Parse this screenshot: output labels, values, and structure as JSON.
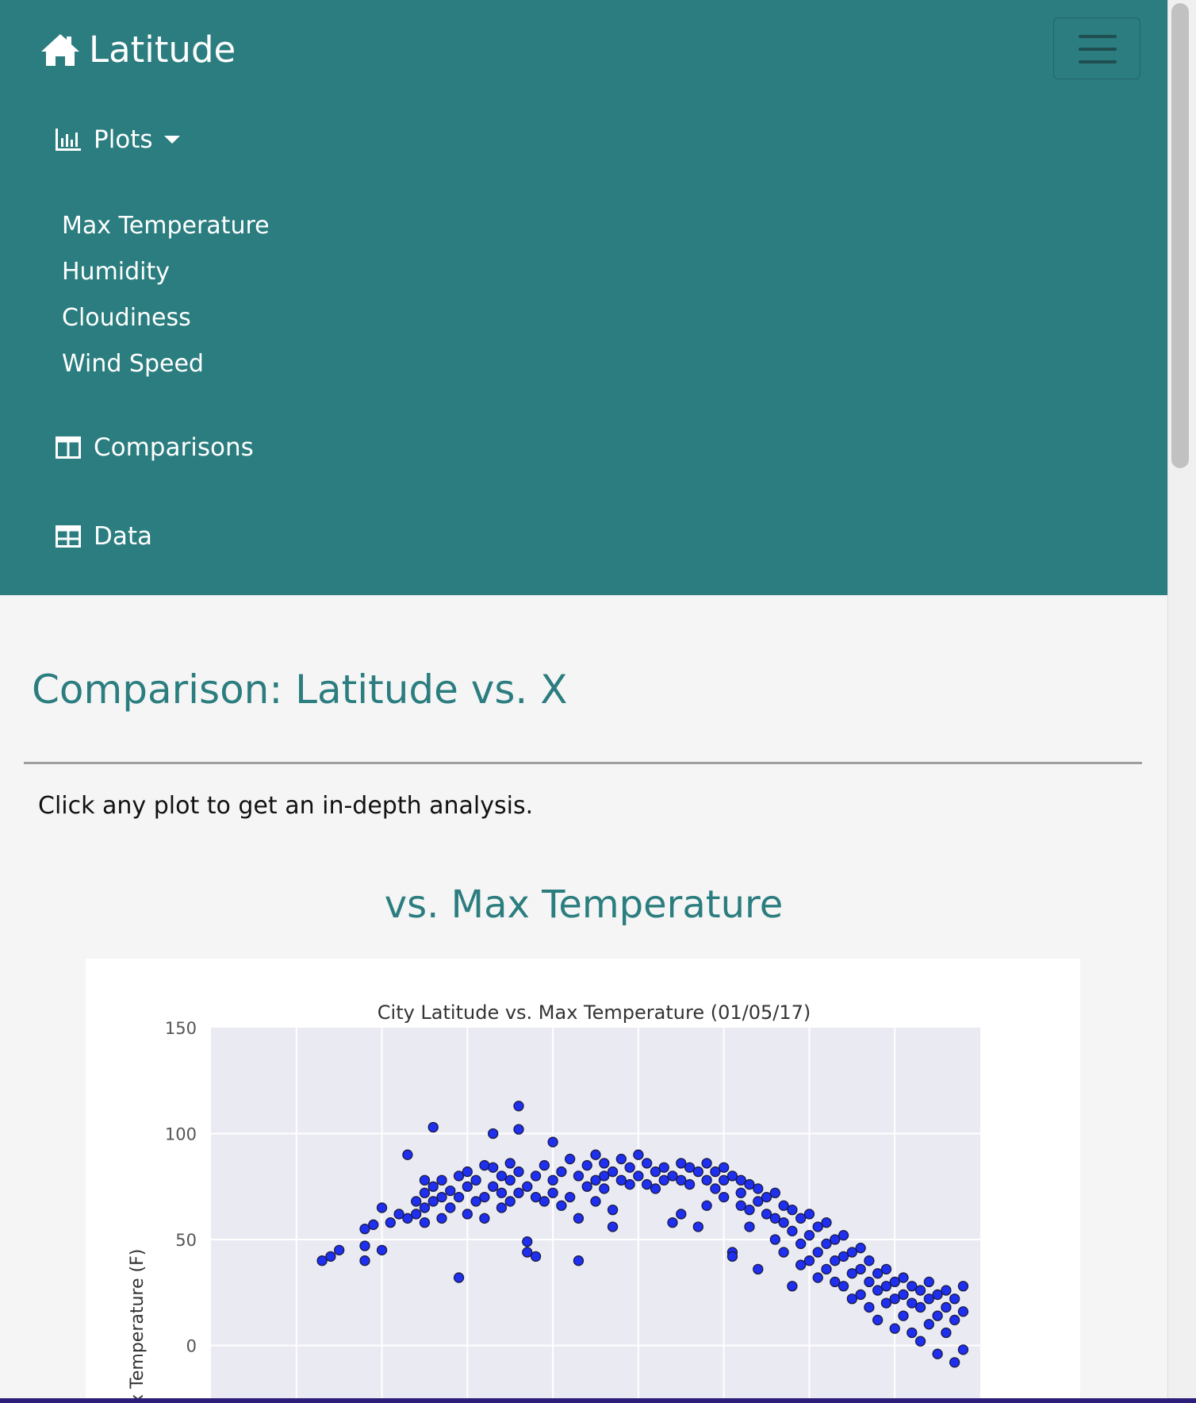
{
  "navbar": {
    "brand": "Latitude",
    "brand_icon": "home-icon",
    "toggler_icon": "hamburger-icon",
    "background": "#2b7d7f",
    "plots_label": "Plots",
    "plots_icon": "bar-chart-icon",
    "dropdown_items": [
      "Max Temperature",
      "Humidity",
      "Cloudiness",
      "Wind Speed"
    ],
    "comparisons_label": "Comparisons",
    "comparisons_icon": "columns-icon",
    "data_label": "Data",
    "data_icon": "table-icon"
  },
  "main": {
    "heading": "Comparison: Latitude vs. X",
    "lead": "Click any plot to get an in-depth analysis.",
    "plot_heading": "vs. Max Temperature"
  },
  "chart_data": {
    "type": "scatter",
    "title": "City Latitude vs. Max Temperature (01/05/17)",
    "ylabel": "Max Temperature (F)",
    "xlabel": "",
    "ylim": [
      -25,
      150
    ],
    "xlim": [
      -60,
      30
    ],
    "yticks": [
      0,
      50,
      100,
      150
    ],
    "grid": true,
    "point_color": "#1e2ff0",
    "points": [
      [
        -47,
        40
      ],
      [
        -46,
        42
      ],
      [
        -45,
        45
      ],
      [
        -42,
        55
      ],
      [
        -42,
        47
      ],
      [
        -42,
        40
      ],
      [
        -41,
        57
      ],
      [
        -40,
        65
      ],
      [
        -40,
        45
      ],
      [
        -39,
        58
      ],
      [
        -38,
        62
      ],
      [
        -37,
        60
      ],
      [
        -37,
        90
      ],
      [
        -36,
        68
      ],
      [
        -36,
        62
      ],
      [
        -35,
        78
      ],
      [
        -35,
        72
      ],
      [
        -35,
        65
      ],
      [
        -35,
        58
      ],
      [
        -34,
        103
      ],
      [
        -34,
        75
      ],
      [
        -34,
        68
      ],
      [
        -33,
        70
      ],
      [
        -33,
        60
      ],
      [
        -33,
        78
      ],
      [
        -32,
        73
      ],
      [
        -32,
        65
      ],
      [
        -31,
        80
      ],
      [
        -31,
        32
      ],
      [
        -31,
        70
      ],
      [
        -30,
        82
      ],
      [
        -30,
        62
      ],
      [
        -30,
        75
      ],
      [
        -29,
        68
      ],
      [
        -29,
        78
      ],
      [
        -28,
        85
      ],
      [
        -28,
        70
      ],
      [
        -28,
        60
      ],
      [
        -27,
        100
      ],
      [
        -27,
        84
      ],
      [
        -27,
        75
      ],
      [
        -26,
        80
      ],
      [
        -26,
        65
      ],
      [
        -26,
        72
      ],
      [
        -25,
        86
      ],
      [
        -25,
        78
      ],
      [
        -25,
        68
      ],
      [
        -24,
        113
      ],
      [
        -24,
        102
      ],
      [
        -24,
        82
      ],
      [
        -24,
        72
      ],
      [
        -23,
        75
      ],
      [
        -23,
        49
      ],
      [
        -23,
        44
      ],
      [
        -22,
        80
      ],
      [
        -22,
        70
      ],
      [
        -22,
        42
      ],
      [
        -21,
        85
      ],
      [
        -21,
        68
      ],
      [
        -20,
        96
      ],
      [
        -20,
        78
      ],
      [
        -20,
        72
      ],
      [
        -19,
        82
      ],
      [
        -19,
        66
      ],
      [
        -18,
        88
      ],
      [
        -18,
        70
      ],
      [
        -17,
        80
      ],
      [
        -17,
        60
      ],
      [
        -17,
        40
      ],
      [
        -16,
        85
      ],
      [
        -16,
        75
      ],
      [
        -15,
        90
      ],
      [
        -15,
        78
      ],
      [
        -15,
        68
      ],
      [
        -14,
        86
      ],
      [
        -14,
        80
      ],
      [
        -14,
        74
      ],
      [
        -13,
        82
      ],
      [
        -13,
        64
      ],
      [
        -13,
        56
      ],
      [
        -12,
        88
      ],
      [
        -12,
        78
      ],
      [
        -11,
        84
      ],
      [
        -11,
        76
      ],
      [
        -10,
        90
      ],
      [
        -10,
        80
      ],
      [
        -9,
        86
      ],
      [
        -9,
        76
      ],
      [
        -8,
        82
      ],
      [
        -8,
        74
      ],
      [
        -7,
        84
      ],
      [
        -7,
        78
      ],
      [
        -6,
        80
      ],
      [
        -6,
        58
      ],
      [
        -5,
        86
      ],
      [
        -5,
        78
      ],
      [
        -5,
        62
      ],
      [
        -4,
        84
      ],
      [
        -4,
        76
      ],
      [
        -3,
        82
      ],
      [
        -3,
        56
      ],
      [
        -2,
        86
      ],
      [
        -2,
        78
      ],
      [
        -2,
        66
      ],
      [
        -1,
        82
      ],
      [
        -1,
        74
      ],
      [
        0,
        84
      ],
      [
        0,
        78
      ],
      [
        0,
        70
      ],
      [
        1,
        80
      ],
      [
        1,
        44
      ],
      [
        1,
        42
      ],
      [
        2,
        78
      ],
      [
        2,
        72
      ],
      [
        2,
        66
      ],
      [
        3,
        76
      ],
      [
        3,
        64
      ],
      [
        3,
        56
      ],
      [
        4,
        74
      ],
      [
        4,
        68
      ],
      [
        4,
        36
      ],
      [
        5,
        70
      ],
      [
        5,
        62
      ],
      [
        6,
        72
      ],
      [
        6,
        60
      ],
      [
        6,
        50
      ],
      [
        7,
        66
      ],
      [
        7,
        58
      ],
      [
        7,
        44
      ],
      [
        8,
        64
      ],
      [
        8,
        54
      ],
      [
        8,
        28
      ],
      [
        9,
        60
      ],
      [
        9,
        48
      ],
      [
        9,
        38
      ],
      [
        10,
        62
      ],
      [
        10,
        52
      ],
      [
        10,
        40
      ],
      [
        11,
        56
      ],
      [
        11,
        44
      ],
      [
        11,
        32
      ],
      [
        12,
        58
      ],
      [
        12,
        48
      ],
      [
        12,
        36
      ],
      [
        13,
        50
      ],
      [
        13,
        40
      ],
      [
        13,
        30
      ],
      [
        14,
        52
      ],
      [
        14,
        42
      ],
      [
        14,
        28
      ],
      [
        15,
        44
      ],
      [
        15,
        34
      ],
      [
        15,
        22
      ],
      [
        16,
        46
      ],
      [
        16,
        36
      ],
      [
        16,
        24
      ],
      [
        17,
        40
      ],
      [
        17,
        30
      ],
      [
        17,
        18
      ],
      [
        18,
        34
      ],
      [
        18,
        26
      ],
      [
        18,
        12
      ],
      [
        19,
        36
      ],
      [
        19,
        28
      ],
      [
        19,
        20
      ],
      [
        20,
        30
      ],
      [
        20,
        22
      ],
      [
        20,
        8
      ],
      [
        21,
        32
      ],
      [
        21,
        24
      ],
      [
        21,
        14
      ],
      [
        22,
        28
      ],
      [
        22,
        20
      ],
      [
        22,
        6
      ],
      [
        23,
        26
      ],
      [
        23,
        18
      ],
      [
        23,
        2
      ],
      [
        24,
        30
      ],
      [
        24,
        22
      ],
      [
        24,
        10
      ],
      [
        25,
        24
      ],
      [
        25,
        14
      ],
      [
        25,
        -4
      ],
      [
        26,
        26
      ],
      [
        26,
        18
      ],
      [
        26,
        6
      ],
      [
        27,
        22
      ],
      [
        27,
        12
      ],
      [
        27,
        -8
      ],
      [
        28,
        28
      ],
      [
        28,
        16
      ],
      [
        28,
        -2
      ]
    ]
  }
}
